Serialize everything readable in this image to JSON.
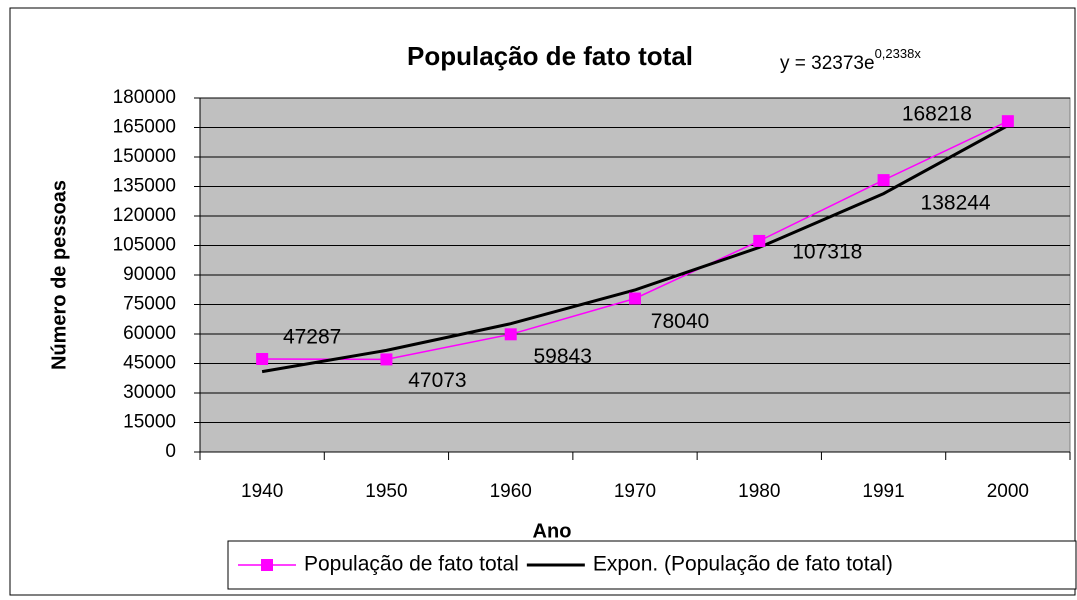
{
  "chart_data": {
    "type": "line",
    "title": "População de fato total",
    "equation": {
      "text": "y = 32373e",
      "exponent": "0,2338x"
    },
    "x_label": "Ano",
    "y_label": "Número de pessoas",
    "categories": [
      "1940",
      "1950",
      "1960",
      "1970",
      "1980",
      "1991",
      "2000"
    ],
    "series": [
      {
        "name": "População de fato total",
        "color": "#ff00ff",
        "marker": "square",
        "values": [
          47287,
          47073,
          59843,
          78040,
          107318,
          138244,
          168218
        ]
      },
      {
        "name": "Expon. (População de fato total)",
        "color": "#000000",
        "marker": "none",
        "values": [
          40887,
          51640,
          65222,
          82375,
          104040,
          131403,
          165962
        ]
      }
    ],
    "ylim": [
      0,
      180000
    ],
    "yticks": [
      0,
      15000,
      30000,
      45000,
      60000,
      75000,
      90000,
      105000,
      120000,
      135000,
      150000,
      165000,
      180000
    ],
    "grid": true,
    "plot_background": "#c0c0c0",
    "legend": "bottom"
  }
}
